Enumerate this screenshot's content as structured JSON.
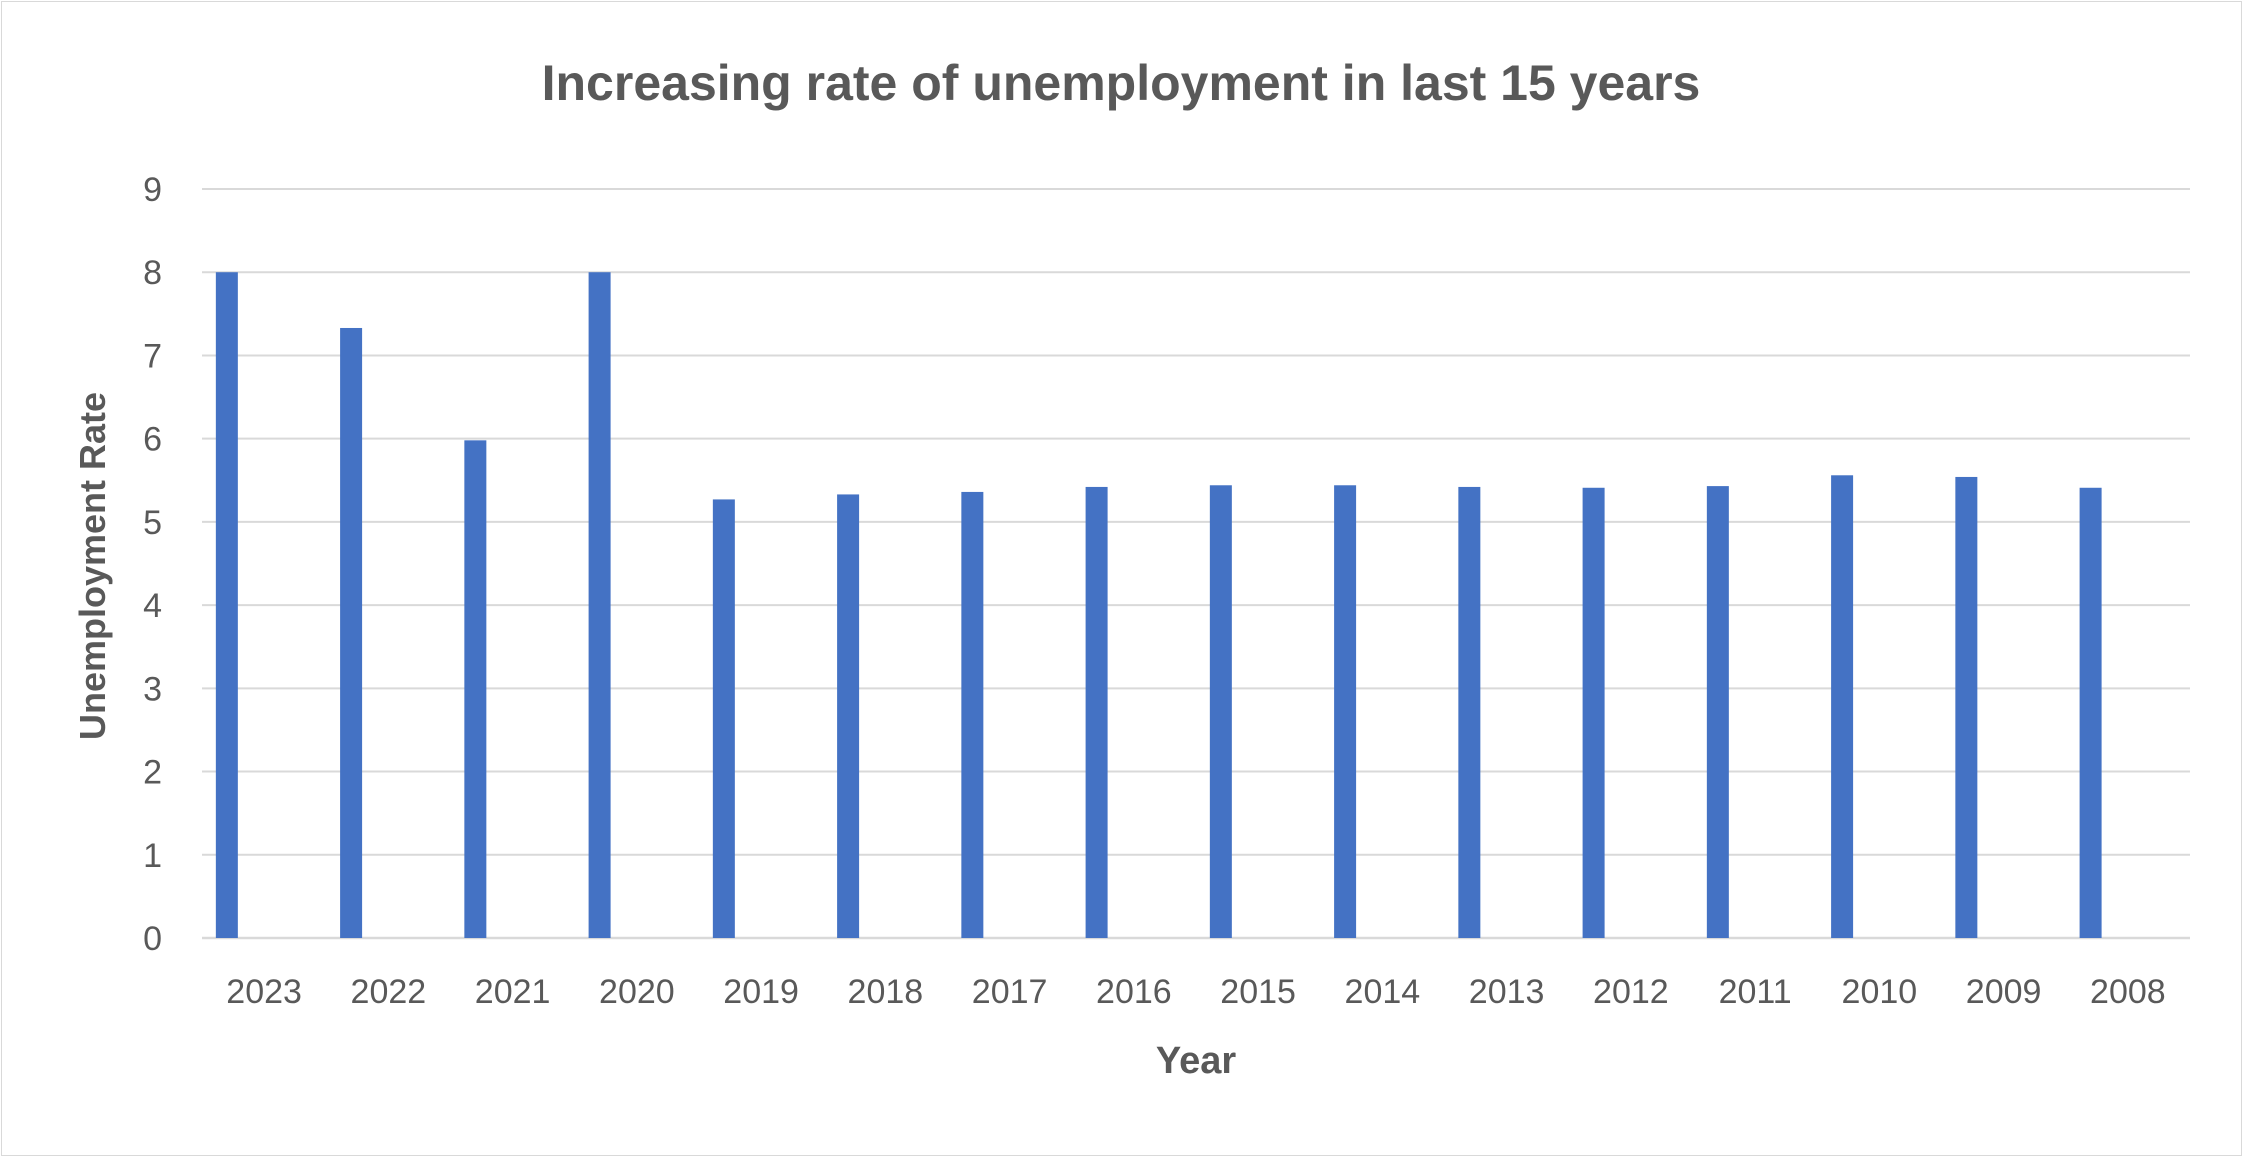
{
  "chart_data": {
    "type": "bar",
    "title": "Increasing rate of unemployment in last 15 years",
    "xlabel": "Year",
    "ylabel": "Unemployment Rate",
    "categories": [
      "2023",
      "2022",
      "2021",
      "2020",
      "2019",
      "2018",
      "2017",
      "2016",
      "2015",
      "2014",
      "2013",
      "2012",
      "2011",
      "2010",
      "2009",
      "2008"
    ],
    "values": [
      8.0,
      7.33,
      5.98,
      8.0,
      5.27,
      5.33,
      5.36,
      5.42,
      5.44,
      5.44,
      5.42,
      5.41,
      5.43,
      5.56,
      5.54,
      5.41
    ],
    "ylim": [
      0,
      9
    ],
    "yticks": [
      "0",
      "1",
      "2",
      "3",
      "4",
      "5",
      "6",
      "7",
      "8",
      "9"
    ],
    "grid": true,
    "legend": "none",
    "bar_color": "#4472c4",
    "grid_color": "#d9d9d9",
    "text_color": "#595959"
  }
}
